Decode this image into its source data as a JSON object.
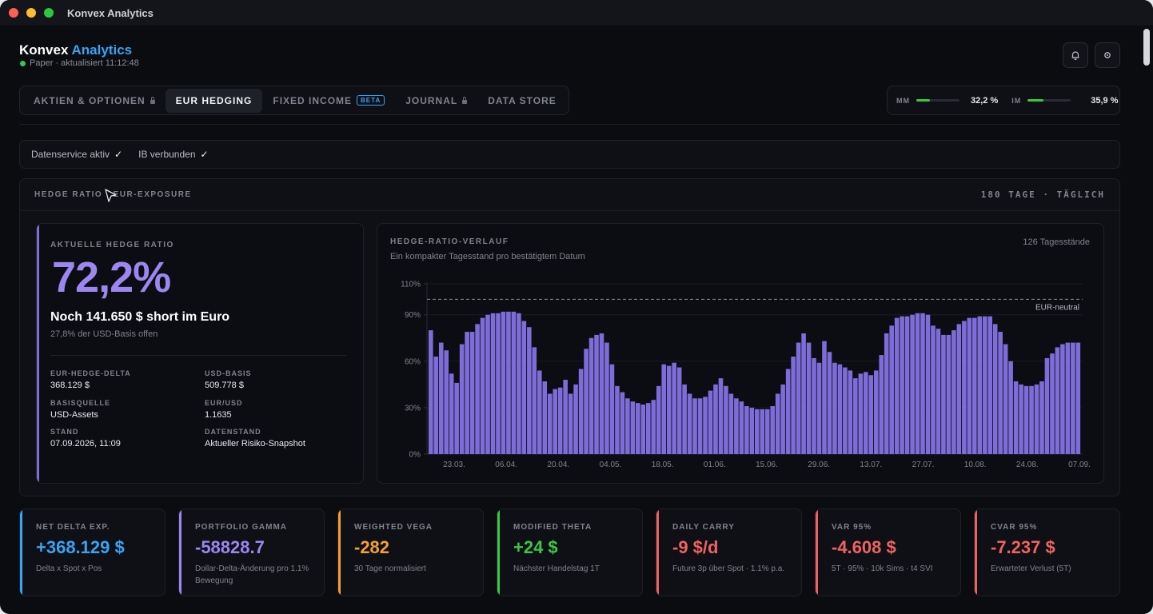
{
  "window": {
    "title": "Konvex Analytics"
  },
  "header": {
    "title_main": "Konvex",
    "title_accent": "Analytics",
    "status_text": "Paper · aktualisiert 11:12:48",
    "bell_icon": "bell-icon",
    "settings_icon": "gear-icon"
  },
  "tabs": [
    {
      "label": "AKTIEN & OPTIONEN",
      "locked": true
    },
    {
      "label": "EUR HEDGING",
      "active": true
    },
    {
      "label": "FIXED INCOME",
      "badge": "BETA"
    },
    {
      "label": "JOURNAL",
      "locked": true
    },
    {
      "label": "DATA STORE"
    }
  ],
  "margin": {
    "mm_label": "MM",
    "mm_value": "32,2 %",
    "mm_fraction": 0.322,
    "im_label": "IM",
    "im_value": "35,9 %",
    "im_fraction": 0.359,
    "bar_color": "#3ac746"
  },
  "services": {
    "data_service": "Datenservice aktiv",
    "data_check": "✓",
    "ib": "IB verbunden",
    "ib_check": "✓"
  },
  "panel": {
    "left_title": "HEDGE RATIO · EUR-EXPOSURE",
    "right_title": "180 TAGE · TÄGLICH"
  },
  "hedge_card": {
    "kicker": "AKTUELLE HEDGE RATIO",
    "ratio": "72,2%",
    "headline": "Noch 141.650 $ short im Euro",
    "subline": "27,8% der USD-Basis offen",
    "fields": [
      {
        "label": "EUR-HEDGE-DELTA",
        "value": "368.129 $"
      },
      {
        "label": "USD-BASIS",
        "value": "509.778 $"
      },
      {
        "label": "BASISQUELLE",
        "value": "USD-Assets"
      },
      {
        "label": "EUR/USD",
        "value": "1.1635"
      },
      {
        "label": "STAND",
        "value": "07.09.2026, 11:09"
      },
      {
        "label": "DATENSTAND",
        "value": "Aktueller Risiko-Snapshot"
      }
    ],
    "accent": "#9c86f0"
  },
  "chart_card": {
    "title": "HEDGE-RATIO-VERLAUF",
    "subtitle": "Ein kompakter Tagesstand pro bestätigtem Datum",
    "count": "126 Tagesstände"
  },
  "chart_data": {
    "type": "bar",
    "ylim": [
      0,
      110
    ],
    "y_ticks": [
      0,
      30,
      60,
      90,
      110
    ],
    "y_tick_labels": [
      "0%",
      "30%",
      "60%",
      "90%",
      "110%"
    ],
    "x_tick_labels": [
      "23.03.",
      "06.04.",
      "20.04.",
      "04.05.",
      "18.05.",
      "01.06.",
      "15.06.",
      "29.06.",
      "13.07.",
      "27.07.",
      "10.08.",
      "24.08.",
      "07.09."
    ],
    "reference_line": {
      "label": "EUR-neutral",
      "value": 100
    },
    "bar_color": "#7e6cd8",
    "values": [
      80,
      63,
      72,
      67,
      52,
      46,
      71,
      79,
      79,
      84,
      88,
      90,
      91,
      91,
      92,
      92,
      92,
      91,
      86,
      82,
      69,
      54,
      47,
      39,
      42,
      43,
      48,
      39,
      45,
      55,
      68,
      75,
      77,
      78,
      72,
      58,
      44,
      40,
      36,
      34,
      33,
      32,
      33,
      35,
      44,
      58,
      57,
      59,
      56,
      45,
      39,
      36,
      36,
      37,
      41,
      45,
      49,
      44,
      39,
      36,
      34,
      31,
      30,
      29,
      29,
      29,
      31,
      39,
      45,
      55,
      63,
      72,
      78,
      72,
      62,
      59,
      73,
      66,
      59,
      58,
      56,
      54,
      49,
      52,
      53,
      51,
      54,
      64,
      78,
      83,
      88,
      89,
      89,
      90,
      91,
      91,
      90,
      83,
      81,
      77,
      77,
      80,
      84,
      86,
      88,
      88,
      89,
      89,
      89,
      84,
      79,
      71,
      60,
      47,
      45,
      44,
      44,
      45,
      47,
      62,
      65,
      69,
      71,
      72,
      72,
      72
    ]
  },
  "kpis": [
    {
      "label": "NET DELTA EXP.",
      "value": "+368.129 $",
      "sub": "Delta x Spot x Pos",
      "color": "#38a4f5"
    },
    {
      "label": "PORTFOLIO GAMMA",
      "value": "-58828.7",
      "sub": "Dollar-Delta-Änderung pro 1.1% Bewegung",
      "color": "#9c86f0"
    },
    {
      "label": "WEIGHTED VEGA",
      "value": "-282",
      "sub": "30 Tage normalisiert",
      "color": "#f59f32"
    },
    {
      "label": "MODIFIED THETA",
      "value": "+24 $",
      "sub": "Nächster Handelstag 1T",
      "color": "#3ac746"
    },
    {
      "label": "DAILY CARRY",
      "value": "-9 $/d",
      "sub": "Future 3p über Spot · 1.1% p.a.",
      "color": "#f06262"
    },
    {
      "label": "VAR 95%",
      "value": "-4.608 $",
      "sub": "5T · 95% · 10k Sims · t4 SVI",
      "color": "#f06262"
    },
    {
      "label": "CVAR 95%",
      "value": "-7.237 $",
      "sub": "Erwarteter Verlust (5T)",
      "color": "#f06262"
    }
  ]
}
